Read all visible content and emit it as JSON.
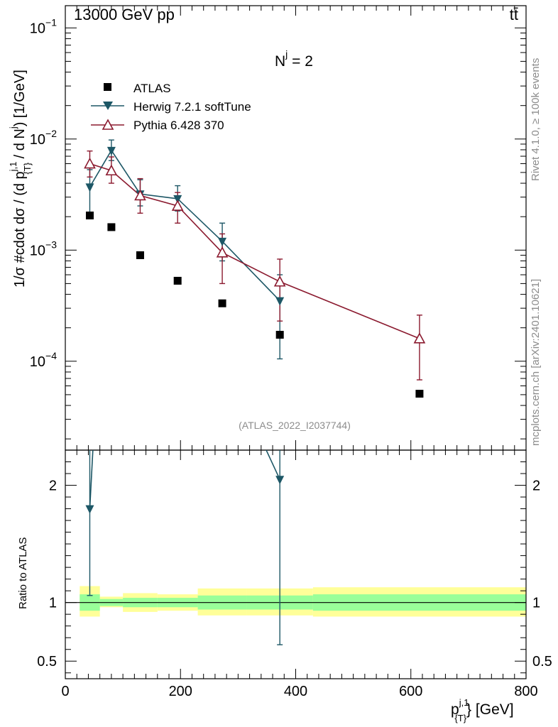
{
  "chart_data": {
    "type": "scatter",
    "header": {
      "left": "13000 GeV pp",
      "right": "tt̄"
    },
    "annotation": "N",
    "annotation_sup": "j",
    "annotation_value": " = 2",
    "watermark": "(ATLAS_2022_I2037744)",
    "side_label_top": "Rivet 4.1.0, ≥ 100k events",
    "side_label_bottom": "mcplots.cern.ch [arXiv:2401.10621]",
    "ylabel_main": "1/σ #cdot dσ / (d p^{j,1}_{T} / d N^{j}) [1/GeV]",
    "ylabel_main_parts": {
      "a": "1/σ #cdot dσ / (d p",
      "sup": "j,1",
      "sub": "{T}",
      "b": " / d N",
      "sup2": "j",
      "c": ") [1/GeV]"
    },
    "ylabel_ratio": "Ratio to ATLAS",
    "xlabel_parts": {
      "a": "p",
      "sup": "j,1",
      "sub": "{T}",
      "b": "} [GeV]"
    },
    "xlim": [
      0,
      800
    ],
    "ylim_main_log10": [
      -4.8,
      -0.8
    ],
    "ylim_ratio": [
      0.35,
      2.3
    ],
    "x_ticks": [
      0,
      200,
      400,
      600,
      800
    ],
    "x_tick_labels": [
      "0",
      "200",
      "400",
      "600",
      "800"
    ],
    "y_main_ticks": [
      {
        "exp": -1,
        "label_base": "10",
        "label_exp": "−1"
      },
      {
        "exp": -2,
        "label_base": "10",
        "label_exp": "−2"
      },
      {
        "exp": -3,
        "label_base": "10",
        "label_exp": "−3"
      },
      {
        "exp": -4,
        "label_base": "10",
        "label_exp": "−4"
      }
    ],
    "y_ratio_ticks": [
      0.5,
      1,
      2
    ],
    "y_ratio_tick_labels": [
      "0.5",
      "1",
      "2"
    ],
    "legend": [
      {
        "name": "ATLAS",
        "marker": "square",
        "color": "#000000"
      },
      {
        "name": "Herwig 7.2.1 softTune",
        "marker": "triangle-down",
        "color": "#1d5766"
      },
      {
        "name": "Pythia 6.428 370",
        "marker": "triangle-up-open",
        "color": "#8b1a2f"
      }
    ],
    "series": [
      {
        "name": "ATLAS",
        "x": [
          42.5,
          80,
          130,
          195,
          272.5,
          372.5,
          615
        ],
        "y": [
          0.00205,
          0.00161,
          0.0009,
          0.00053,
          0.000332,
          0.000173,
          5.1e-05
        ]
      },
      {
        "name": "Herwig 7.2.1 softTune",
        "x": [
          42.5,
          80,
          130,
          195,
          272.5,
          372.5
        ],
        "y": [
          0.0037,
          0.0079,
          0.0032,
          0.0029,
          0.0012,
          0.00035
        ],
        "ylo": [
          0.00215,
          0.0064,
          0.0025,
          0.00225,
          0.0008,
          0.000105
        ],
        "yhi": [
          0.0053,
          0.0098,
          0.0043,
          0.0038,
          0.00175,
          0.0006
        ]
      },
      {
        "name": "Pythia 6.428 370",
        "x": [
          42.5,
          80,
          130,
          195,
          272.5,
          372.5,
          615
        ],
        "y": [
          0.006,
          0.0052,
          0.0031,
          0.0025,
          0.00095,
          0.00052,
          0.00016
        ],
        "ylo": [
          0.00455,
          0.004,
          0.00215,
          0.00175,
          0.0005,
          0.00023,
          6.8e-05
        ],
        "yhi": [
          0.0078,
          0.0069,
          0.0044,
          0.0033,
          0.0014,
          0.00083,
          0.00026
        ]
      }
    ],
    "ratio": {
      "herwig": {
        "x": [
          42.5,
          372.5
        ],
        "y": [
          1.8,
          2.05
        ],
        "ylo": [
          1.06,
          0.64
        ],
        "yhi": [
          2.5,
          2.5
        ]
      },
      "herwig_line_to": {
        "x": [
          50,
          330
        ],
        "y": [
          2.5,
          2.5
        ]
      },
      "bands": [
        {
          "x0": 25,
          "x1": 60,
          "in_lo": 0.93,
          "in_hi": 1.07,
          "out_lo": 0.88,
          "out_hi": 1.14
        },
        {
          "x0": 60,
          "x1": 100,
          "in_lo": 0.97,
          "in_hi": 1.03,
          "out_lo": 0.96,
          "out_hi": 1.05
        },
        {
          "x0": 100,
          "x1": 160,
          "in_lo": 0.96,
          "in_hi": 1.04,
          "out_lo": 0.92,
          "out_hi": 1.08
        },
        {
          "x0": 160,
          "x1": 230,
          "in_lo": 0.96,
          "in_hi": 1.04,
          "out_lo": 0.93,
          "out_hi": 1.07
        },
        {
          "x0": 230,
          "x1": 315,
          "in_lo": 0.94,
          "in_hi": 1.06,
          "out_lo": 0.89,
          "out_hi": 1.12
        },
        {
          "x0": 315,
          "x1": 430,
          "in_lo": 0.94,
          "in_hi": 1.06,
          "out_lo": 0.89,
          "out_hi": 1.12
        },
        {
          "x0": 430,
          "x1": 800,
          "in_lo": 0.93,
          "in_hi": 1.07,
          "out_lo": 0.88,
          "out_hi": 1.13
        }
      ]
    },
    "colors": {
      "atlas": "#000000",
      "herwig": "#1d5766",
      "pythia": "#8b1a2f",
      "band_inner": "#99ff99",
      "band_outer": "#ffff99"
    }
  }
}
